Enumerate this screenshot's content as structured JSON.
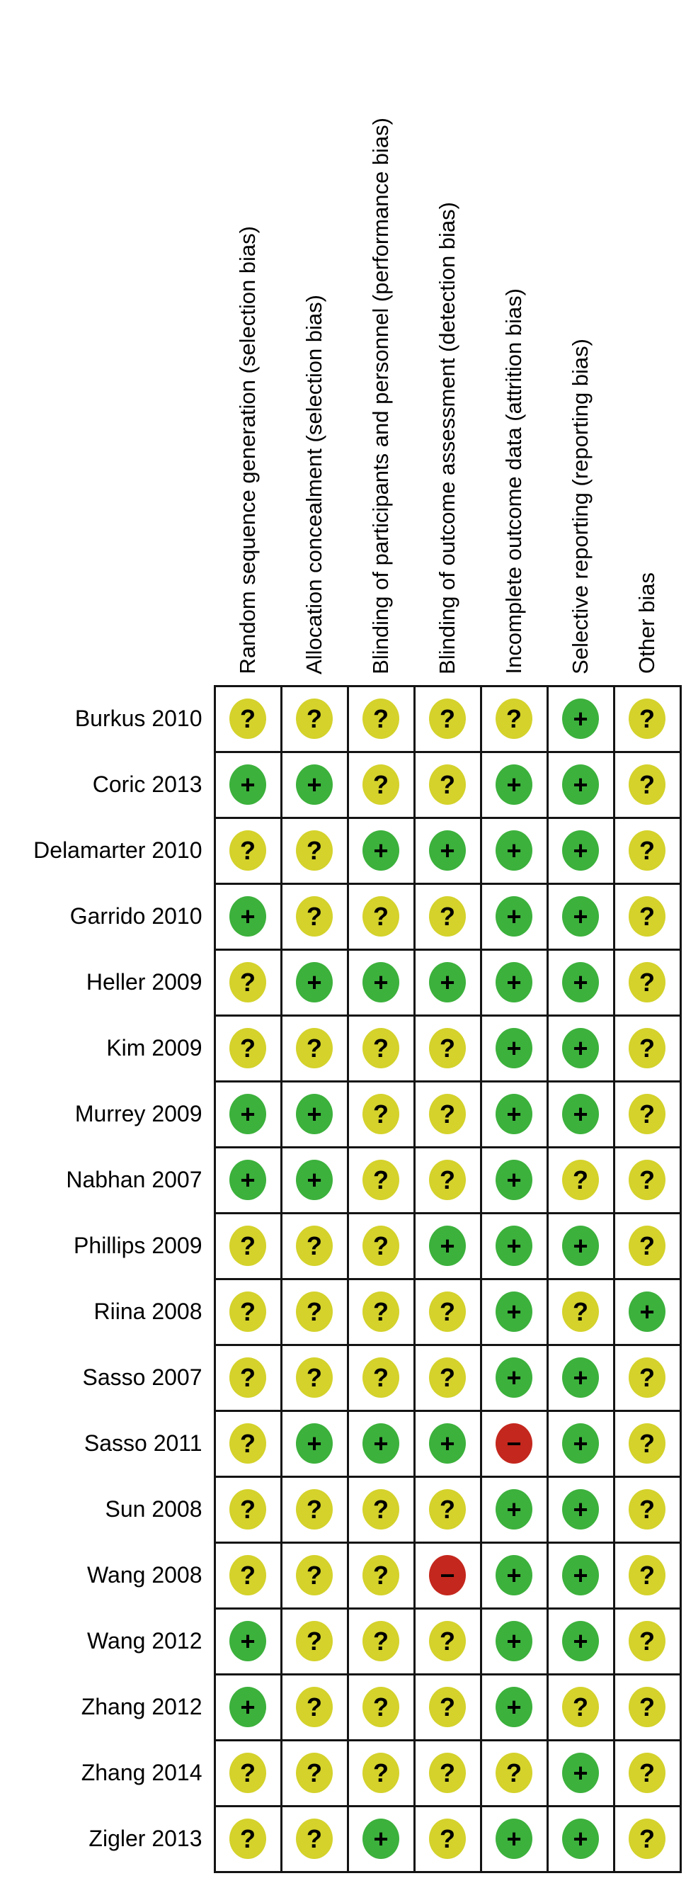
{
  "chart_data": {
    "type": "table",
    "layout": "risk-of-bias matrix: studies as rows, bias domains as columns, one judgment symbol per cell",
    "columns": [
      "Random sequence generation (selection bias)",
      "Allocation concealment (selection bias)",
      "Blinding of participants and personnel (performance bias)",
      "Blinding of outcome assessment (detection bias)",
      "Incomplete outcome data (attrition bias)",
      "Selective reporting (reporting bias)",
      "Other bias"
    ],
    "rows": [
      {
        "study": "Burkus 2010",
        "judgments": [
          "?",
          "?",
          "?",
          "?",
          "?",
          "+",
          "?"
        ]
      },
      {
        "study": "Coric 2013",
        "judgments": [
          "+",
          "+",
          "?",
          "?",
          "+",
          "+",
          "?"
        ]
      },
      {
        "study": "Delamarter 2010",
        "judgments": [
          "?",
          "?",
          "+",
          "+",
          "+",
          "+",
          "?"
        ]
      },
      {
        "study": "Garrido 2010",
        "judgments": [
          "+",
          "?",
          "?",
          "?",
          "+",
          "+",
          "?"
        ]
      },
      {
        "study": "Heller 2009",
        "judgments": [
          "?",
          "+",
          "+",
          "+",
          "+",
          "+",
          "?"
        ]
      },
      {
        "study": "Kim 2009",
        "judgments": [
          "?",
          "?",
          "?",
          "?",
          "+",
          "+",
          "?"
        ]
      },
      {
        "study": "Murrey 2009",
        "judgments": [
          "+",
          "+",
          "?",
          "?",
          "+",
          "+",
          "?"
        ]
      },
      {
        "study": "Nabhan 2007",
        "judgments": [
          "+",
          "+",
          "?",
          "?",
          "+",
          "?",
          "?"
        ]
      },
      {
        "study": "Phillips 2009",
        "judgments": [
          "?",
          "?",
          "?",
          "+",
          "+",
          "+",
          "?"
        ]
      },
      {
        "study": "Riina 2008",
        "judgments": [
          "?",
          "?",
          "?",
          "?",
          "+",
          "?",
          "+"
        ]
      },
      {
        "study": "Sasso 2007",
        "judgments": [
          "?",
          "?",
          "?",
          "?",
          "+",
          "+",
          "?"
        ]
      },
      {
        "study": "Sasso 2011",
        "judgments": [
          "?",
          "+",
          "+",
          "+",
          "-",
          "+",
          "?"
        ]
      },
      {
        "study": "Sun 2008",
        "judgments": [
          "?",
          "?",
          "?",
          "?",
          "+",
          "+",
          "?"
        ]
      },
      {
        "study": "Wang 2008",
        "judgments": [
          "?",
          "?",
          "?",
          "-",
          "+",
          "+",
          "?"
        ]
      },
      {
        "study": "Wang 2012",
        "judgments": [
          "+",
          "?",
          "?",
          "?",
          "+",
          "+",
          "?"
        ]
      },
      {
        "study": "Zhang 2012",
        "judgments": [
          "+",
          "?",
          "?",
          "?",
          "+",
          "?",
          "?"
        ]
      },
      {
        "study": "Zhang 2014",
        "judgments": [
          "?",
          "?",
          "?",
          "?",
          "?",
          "+",
          "?"
        ]
      },
      {
        "study": "Zigler 2013",
        "judgments": [
          "?",
          "?",
          "+",
          "?",
          "+",
          "+",
          "?"
        ]
      }
    ],
    "symbol_display": {
      "+": "+",
      "?": "?",
      "-": "−"
    },
    "colors": {
      "+": "#3cb13c",
      "?": "#d4d22b",
      "-": "#c4271d",
      "grid": "#141414",
      "text": "#000000",
      "background": "#ffffff"
    }
  }
}
